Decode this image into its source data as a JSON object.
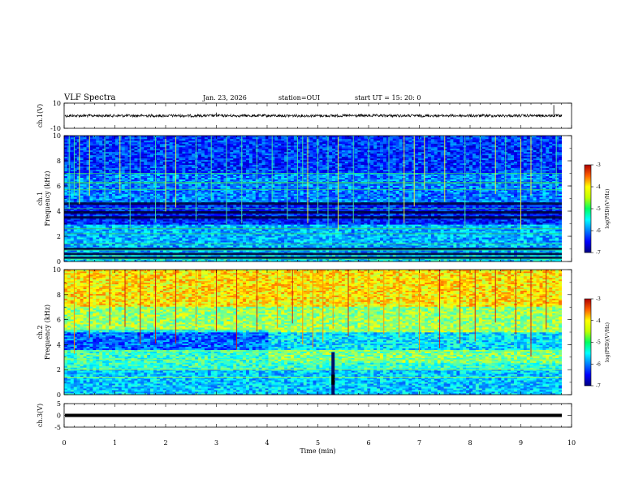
{
  "header": {
    "title": "VLF Spectra",
    "date": "Jan. 23, 2026",
    "station": "station=OUI",
    "start": "start  UT =  15: 20: 0"
  },
  "chart_data": [
    {
      "type": "line",
      "name": "ch1-waveform",
      "ylabel": "ch.1(V)",
      "ylim": [
        -10,
        10
      ],
      "yticks": [
        "10",
        "-10"
      ],
      "xlim": [
        0,
        10
      ],
      "baseline": 0,
      "spikes": [
        {
          "x": 3.0,
          "y": 2.5
        },
        {
          "x": 9.65,
          "y": 8.5
        }
      ]
    },
    {
      "type": "heatmap",
      "name": "ch1-spectrogram",
      "ylabel": "ch.1\nFrequency (kHz)",
      "ylim": [
        0,
        10
      ],
      "yticks": [
        "0",
        "2",
        "4",
        "6",
        "8",
        "10"
      ],
      "xlim": [
        0,
        10
      ],
      "colorbar": {
        "label": "log(PSD)(V²/Hz)",
        "range": [
          -7,
          -3
        ],
        "ticks": [
          "-3",
          "-4",
          "-5",
          "-6",
          "-7"
        ]
      },
      "bands": [
        {
          "f0": 0.0,
          "f1": 0.6,
          "level": -5.6
        },
        {
          "f0": 0.6,
          "f1": 3.0,
          "level": -5.8
        },
        {
          "f0": 3.0,
          "f1": 4.6,
          "level": -6.4
        },
        {
          "f0": 4.6,
          "f1": 7.0,
          "level": -6.0
        },
        {
          "f0": 7.0,
          "f1": 10.0,
          "level": -6.3
        }
      ],
      "dark_lines_khz": [
        0.3,
        0.6,
        1.0,
        3.5,
        3.9,
        4.6
      ],
      "tones_khz": [
        0.2,
        0.9,
        1.4,
        2.2,
        2.6,
        4.2,
        5.7,
        6.2,
        6.3,
        7.0
      ],
      "burst_times_min": [
        0.1,
        0.2,
        0.3,
        0.5,
        0.8,
        1.1,
        1.3,
        1.5,
        1.8,
        2.0,
        2.2,
        2.6,
        2.9,
        3.2,
        3.5,
        3.8,
        4.1,
        4.4,
        4.6,
        4.7,
        4.8,
        5.0,
        5.2,
        5.4,
        5.7,
        6.0,
        6.4,
        6.7,
        6.9,
        7.1,
        7.5,
        7.9,
        8.2,
        8.5,
        8.7,
        9.0,
        9.2,
        9.4,
        9.7
      ]
    },
    {
      "type": "heatmap",
      "name": "ch2-spectrogram",
      "ylabel": "ch.2\nFrequency (kHz)",
      "ylim": [
        0,
        10
      ],
      "yticks": [
        "0",
        "2",
        "4",
        "6",
        "8",
        "10"
      ],
      "xlim": [
        0,
        10
      ],
      "colorbar": {
        "label": "log(PSD)(V²/Hz)",
        "range": [
          -7,
          -3
        ],
        "ticks": [
          "-3",
          "-4",
          "-5",
          "-6",
          "-7"
        ]
      },
      "bands": [
        {
          "f0": 0.0,
          "f1": 2.0,
          "level": -5.7
        },
        {
          "f0": 2.0,
          "f1": 3.6,
          "level": -5.3
        },
        {
          "f0": 3.6,
          "f1": 5.0,
          "level": -5.6
        },
        {
          "f0": 5.0,
          "f1": 7.0,
          "level": -4.9
        },
        {
          "f0": 7.0,
          "f1": 10.0,
          "level": -4.4
        }
      ],
      "step_time_min": 4.0,
      "dark_column_min": 5.3,
      "tones_khz": [
        1.4,
        2.0,
        2.8,
        3.5,
        5.2
      ],
      "burst_times_min": [
        0.2,
        0.5,
        0.9,
        1.2,
        1.5,
        1.8,
        2.2,
        2.6,
        3.0,
        3.4,
        3.8,
        4.2,
        4.5,
        4.7,
        4.9,
        5.1,
        5.3,
        5.6,
        6.0,
        6.3,
        6.6,
        7.0,
        7.4,
        7.8,
        8.1,
        8.5,
        8.9,
        9.2,
        9.5
      ]
    },
    {
      "type": "line",
      "name": "ch3-waveform",
      "ylabel": "ch.3(V)",
      "ylim": [
        -5,
        5
      ],
      "yticks": [
        "5",
        "0",
        "-5"
      ],
      "xlim": [
        0,
        10
      ],
      "baseline": 0
    }
  ],
  "xaxis": {
    "label": "Time (min)",
    "ticks": [
      "0",
      "1",
      "2",
      "3",
      "4",
      "5",
      "6",
      "7",
      "8",
      "9",
      "10"
    ]
  }
}
